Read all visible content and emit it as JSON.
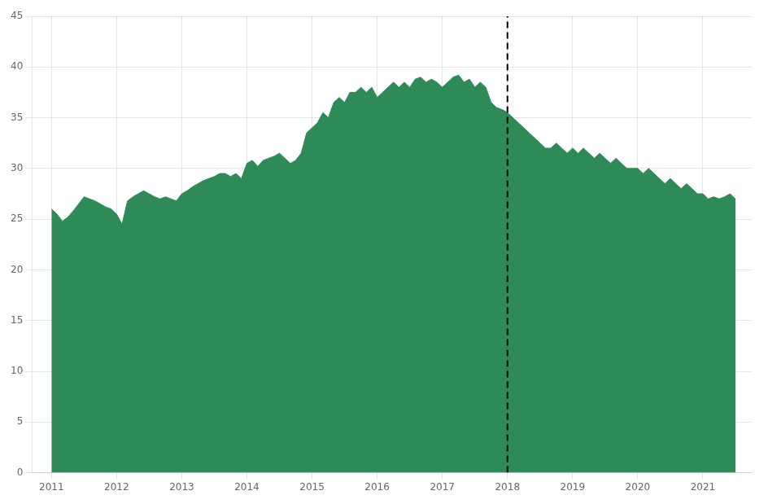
{
  "chart_data": {
    "type": "area",
    "x": [
      2011.0,
      2011.083,
      2011.167,
      2011.25,
      2011.333,
      2011.417,
      2011.5,
      2011.583,
      2011.667,
      2011.75,
      2011.833,
      2011.917,
      2012.0,
      2012.083,
      2012.167,
      2012.25,
      2012.333,
      2012.417,
      2012.5,
      2012.583,
      2012.667,
      2012.75,
      2012.833,
      2012.917,
      2013.0,
      2013.083,
      2013.167,
      2013.25,
      2013.333,
      2013.417,
      2013.5,
      2013.583,
      2013.667,
      2013.75,
      2013.833,
      2013.917,
      2014.0,
      2014.083,
      2014.167,
      2014.25,
      2014.333,
      2014.417,
      2014.5,
      2014.583,
      2014.667,
      2014.75,
      2014.833,
      2014.917,
      2015.0,
      2015.083,
      2015.167,
      2015.25,
      2015.333,
      2015.417,
      2015.5,
      2015.583,
      2015.667,
      2015.75,
      2015.833,
      2015.917,
      2016.0,
      2016.083,
      2016.167,
      2016.25,
      2016.333,
      2016.417,
      2016.5,
      2016.583,
      2016.667,
      2016.75,
      2016.833,
      2016.917,
      2017.0,
      2017.083,
      2017.167,
      2017.25,
      2017.333,
      2017.417,
      2017.5,
      2017.583,
      2017.667,
      2017.75,
      2017.833,
      2017.917,
      2018.0,
      2018.083,
      2018.167,
      2018.25,
      2018.333,
      2018.417,
      2018.5,
      2018.583,
      2018.667,
      2018.75,
      2018.833,
      2018.917,
      2019.0,
      2019.083,
      2019.167,
      2019.25,
      2019.333,
      2019.417,
      2019.5,
      2019.583,
      2019.667,
      2019.75,
      2019.833,
      2019.917,
      2020.0,
      2020.083,
      2020.167,
      2020.25,
      2020.333,
      2020.417,
      2020.5,
      2020.583,
      2020.667,
      2020.75,
      2020.833,
      2020.917,
      2021.0,
      2021.083,
      2021.167,
      2021.25,
      2021.333,
      2021.417,
      2021.5
    ],
    "values": [
      26.0,
      25.5,
      24.8,
      25.2,
      25.8,
      26.5,
      27.2,
      27.0,
      26.8,
      26.5,
      26.2,
      26.0,
      25.5,
      24.5,
      26.8,
      27.2,
      27.5,
      27.8,
      27.5,
      27.2,
      27.0,
      27.2,
      27.0,
      26.8,
      27.5,
      27.8,
      28.2,
      28.5,
      28.8,
      29.0,
      29.2,
      29.5,
      29.5,
      29.2,
      29.5,
      29.0,
      30.5,
      30.8,
      30.2,
      30.8,
      31.0,
      31.2,
      31.5,
      31.0,
      30.5,
      30.8,
      31.5,
      33.5,
      34.0,
      34.5,
      35.5,
      35.0,
      36.5,
      37.0,
      36.5,
      37.5,
      37.5,
      38.0,
      37.5,
      38.0,
      37.0,
      37.5,
      38.0,
      38.5,
      38.0,
      38.5,
      38.0,
      38.8,
      39.0,
      38.5,
      38.8,
      38.5,
      38.0,
      38.5,
      39.0,
      39.2,
      38.5,
      38.8,
      38.0,
      38.5,
      38.0,
      36.5,
      36.0,
      35.8,
      35.5,
      35.0,
      34.5,
      34.0,
      33.5,
      33.0,
      32.5,
      32.0,
      32.0,
      32.5,
      32.0,
      31.5,
      32.0,
      31.5,
      32.0,
      31.5,
      31.0,
      31.5,
      31.0,
      30.5,
      31.0,
      30.5,
      30.0,
      30.0,
      30.0,
      29.5,
      30.0,
      29.5,
      29.0,
      28.5,
      29.0,
      28.5,
      28.0,
      28.5,
      28.0,
      27.5,
      27.5,
      27.0,
      27.2,
      27.0,
      27.2,
      27.5,
      27.0
    ],
    "color": "#2e8b57",
    "xlim": [
      2010.7,
      2021.75
    ],
    "xticks": [
      2011,
      2012,
      2013,
      2014,
      2015,
      2016,
      2017,
      2018,
      2019,
      2020,
      2021
    ],
    "ylim": [
      0,
      45
    ],
    "yticks": [
      0,
      5,
      10,
      15,
      20,
      25,
      30,
      35,
      40,
      45
    ],
    "grid": true,
    "reference_lines": [
      {
        "x": 2018,
        "color": "#000000",
        "line_style": "dashed"
      }
    ]
  }
}
